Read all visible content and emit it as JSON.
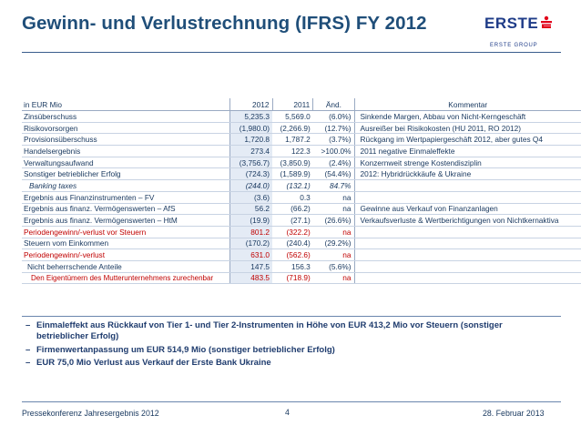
{
  "title": "Gewinn- und Verlustrechnung (IFRS) FY 2012",
  "logo": {
    "wordmark": "ERSTE",
    "group": "ERSTE GROUP",
    "mark_icon": "s-sparkasse-icon",
    "color": "#1f3c88",
    "mark_color": "#e2001a"
  },
  "table": {
    "headers": {
      "label": "in EUR Mio",
      "y2012": "2012",
      "y2011": "2011",
      "change": "Änd.",
      "comment": "Kommentar"
    },
    "rows": [
      {
        "label": "Zinsüberschuss",
        "y2012": "5,235.3",
        "y2011": "5,569.0",
        "change": "(6.0%)",
        "comment": "Sinkende Margen, Abbau von Nicht-Kerngeschäft"
      },
      {
        "label": "Risikovorsorgen",
        "y2012": "(1,980.0)",
        "y2011": "(2,266.9)",
        "change": "(12.7%)",
        "comment": "Ausreißer bei Risikokosten (HU 2011, RO 2012)"
      },
      {
        "label": "Provisionsüberschuss",
        "y2012": "1,720.8",
        "y2011": "1,787.2",
        "change": "(3.7%)",
        "comment": "Rückgang im Wertpapiergeschäft 2012, aber gutes Q4"
      },
      {
        "label": "Handelsergebnis",
        "y2012": "273.4",
        "y2011": "122.3",
        "change": ">100.0%",
        "comment": "2011 negative Einmaleffekte"
      },
      {
        "label": "Verwaltungsaufwand",
        "y2012": "(3,756.7)",
        "y2011": "(3,850.9)",
        "change": "(2.4%)",
        "comment": "Konzernweit strenge Kostendisziplin"
      },
      {
        "label": "Sonstiger betrieblicher Erfolg",
        "y2012": "(724.3)",
        "y2011": "(1,589.9)",
        "change": "(54.4%)",
        "comment": "2012: Hybridrückkäufe & Ukraine"
      },
      {
        "label": "Banking taxes",
        "y2012": "(244.0)",
        "y2011": "(132.1)",
        "change": "84.7%",
        "comment": ""
      },
      {
        "label": "Ergebnis aus Finanzinstrumenten – FV",
        "y2012": "(3.6)",
        "y2011": "0.3",
        "change": "na",
        "comment": ""
      },
      {
        "label": "Ergebnis aus finanz. Vermögenswerten – AfS",
        "y2012": "56.2",
        "y2011": "(66.2)",
        "change": "na",
        "comment": "Gewinne aus Verkauf von Finanzanlagen"
      },
      {
        "label": "Ergebnis aus finanz. Vermögenswerten – HtM",
        "y2012": "(19.9)",
        "y2011": "(27.1)",
        "change": "(26.6%)",
        "comment": "Verkaufsverluste & Wertberichtigungen von Nichtkernaktiva"
      },
      {
        "label": "Periodengewinn/-verlust vor Steuern",
        "y2012": "801.2",
        "y2011": "(322.2)",
        "change": "na",
        "comment": ""
      },
      {
        "label": "Steuern vom Einkommen",
        "y2012": "(170.2)",
        "y2011": "(240.4)",
        "change": "(29.2%)",
        "comment": ""
      },
      {
        "label": "Periodengewinn/-verlust",
        "y2012": "631.0",
        "y2011": "(562.6)",
        "change": "na",
        "comment": ""
      },
      {
        "label": "Nicht beherrschende Anteile",
        "y2012": "147.5",
        "y2011": "156.3",
        "change": "(5.6%)",
        "comment": ""
      },
      {
        "label": "Den Eigentümern des Mutterunternehmens zurechenbar",
        "y2012": "483.5",
        "y2011": "(718.9)",
        "change": "na",
        "comment": ""
      }
    ]
  },
  "bullets": [
    {
      "dash": "–",
      "text": "Einmaleffekt aus Rückkauf von Tier 1- und Tier 2-Instrumenten in Höhe von EUR 413,2 Mio vor Steuern (sonstiger betrieblicher Erfolg)"
    },
    {
      "dash": "–",
      "text": "Firmenwertanpassung um EUR 514,9 Mio (sonstiger betrieblicher Erfolg)"
    },
    {
      "dash": "–",
      "text": "EUR 75,0 Mio Verlust aus Verkauf der Erste Bank Ukraine"
    }
  ],
  "footer": {
    "left": "Pressekonferenz Jahresergebnis 2012",
    "page": "4",
    "right": "28. Februar 2013"
  }
}
